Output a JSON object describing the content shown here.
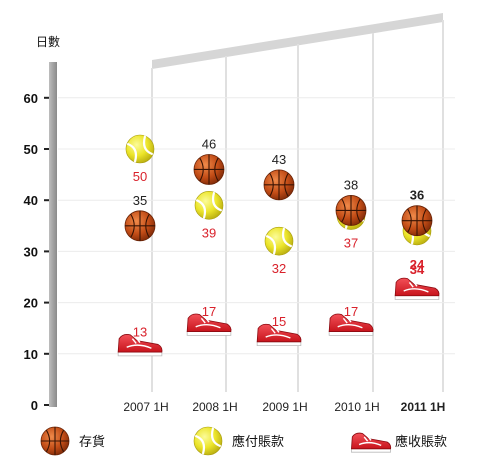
{
  "chart_data": {
    "type": "scatter",
    "ylabel": "日數",
    "ylim": [
      0,
      65
    ],
    "yticks": [
      0,
      10,
      20,
      30,
      40,
      50,
      60
    ],
    "categories": [
      "2007 1H",
      "2008 1H",
      "2009 1H",
      "2010 1H",
      "2011 1H"
    ],
    "highlight_category": "2011 1H",
    "series": [
      {
        "name": "存貨",
        "icon": "basketball-icon",
        "label_color": "#222222",
        "values": [
          35,
          46,
          43,
          38,
          36
        ]
      },
      {
        "name": "應付賬款",
        "icon": "tennis-ball-icon",
        "label_color": "#d9212b",
        "values": [
          50,
          39,
          32,
          37,
          34
        ]
      },
      {
        "name": "應收賬款",
        "icon": "sneaker-icon",
        "label_color": "#d9212b",
        "values": [
          13,
          17,
          15,
          17,
          24
        ]
      }
    ],
    "grid": true,
    "legend_position": "bottom"
  },
  "colors": {
    "accent_red": "#d9212b",
    "basketball": "#c8551b",
    "tennis": "#e6e31f",
    "shoe": "#e8262c",
    "axis": "#9a9a9a"
  }
}
